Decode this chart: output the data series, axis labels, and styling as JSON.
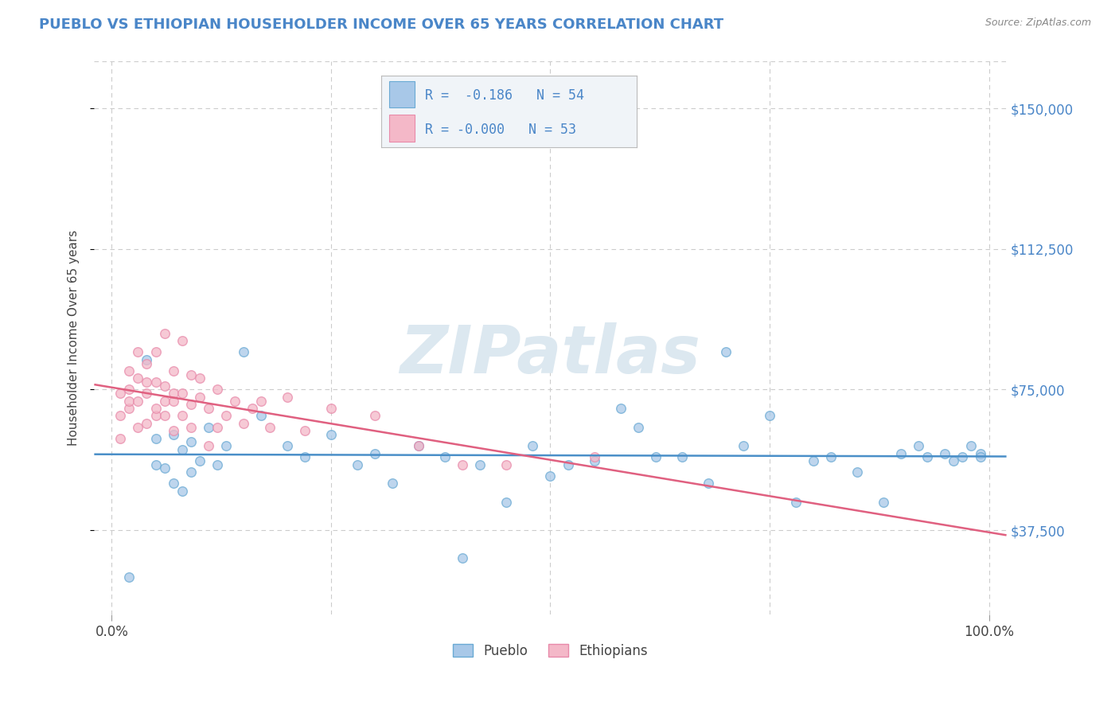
{
  "title": "PUEBLO VS ETHIOPIAN HOUSEHOLDER INCOME OVER 65 YEARS CORRELATION CHART",
  "source": "Source: ZipAtlas.com",
  "ylabel": "Householder Income Over 65 years",
  "ytick_labels": [
    "$37,500",
    "$75,000",
    "$112,500",
    "$150,000"
  ],
  "ytick_values": [
    37500,
    75000,
    112500,
    150000
  ],
  "ymin": 15000,
  "ymax": 162500,
  "xmin": -0.02,
  "xmax": 1.02,
  "legend_line1": "R =  -0.186   N = 54",
  "legend_line2": "R = -0.000   N = 53",
  "pueblo_scatter_color": "#a8c8e8",
  "pueblo_edge_color": "#6aaad4",
  "ethiopian_scatter_color": "#f4b8c8",
  "ethiopian_edge_color": "#e88aaa",
  "trend_pueblo_color": "#4a8fc8",
  "trend_ethiopian_color": "#e06080",
  "watermark_text": "ZIPatlas",
  "watermark_color": "#dce8f0",
  "bg_color": "#ffffff",
  "grid_color": "#cccccc",
  "title_color": "#4a86c8",
  "legend_text_color": "#4a86c8",
  "legend_box_color": "#f0f4f8",
  "pueblo_scatter_x": [
    0.02,
    0.04,
    0.05,
    0.05,
    0.06,
    0.07,
    0.07,
    0.08,
    0.08,
    0.09,
    0.09,
    0.1,
    0.11,
    0.12,
    0.13,
    0.15,
    0.17,
    0.2,
    0.22,
    0.25,
    0.28,
    0.3,
    0.32,
    0.35,
    0.38,
    0.4,
    0.42,
    0.45,
    0.48,
    0.5,
    0.52,
    0.55,
    0.58,
    0.6,
    0.62,
    0.65,
    0.68,
    0.7,
    0.72,
    0.75,
    0.78,
    0.8,
    0.82,
    0.85,
    0.88,
    0.9,
    0.92,
    0.93,
    0.95,
    0.96,
    0.97,
    0.98,
    0.99,
    0.99
  ],
  "pueblo_scatter_y": [
    25000,
    83000,
    62000,
    55000,
    54000,
    63000,
    50000,
    59000,
    48000,
    53000,
    61000,
    56000,
    65000,
    55000,
    60000,
    85000,
    68000,
    60000,
    57000,
    63000,
    55000,
    58000,
    50000,
    60000,
    57000,
    30000,
    55000,
    45000,
    60000,
    52000,
    55000,
    56000,
    70000,
    65000,
    57000,
    57000,
    50000,
    85000,
    60000,
    68000,
    45000,
    56000,
    57000,
    53000,
    45000,
    58000,
    60000,
    57000,
    58000,
    56000,
    57000,
    60000,
    58000,
    57000
  ],
  "ethiopian_scatter_x": [
    0.01,
    0.01,
    0.01,
    0.02,
    0.02,
    0.02,
    0.02,
    0.03,
    0.03,
    0.03,
    0.03,
    0.04,
    0.04,
    0.04,
    0.04,
    0.05,
    0.05,
    0.05,
    0.05,
    0.06,
    0.06,
    0.06,
    0.06,
    0.07,
    0.07,
    0.07,
    0.07,
    0.08,
    0.08,
    0.08,
    0.09,
    0.09,
    0.09,
    0.1,
    0.1,
    0.11,
    0.11,
    0.12,
    0.12,
    0.13,
    0.14,
    0.15,
    0.16,
    0.17,
    0.18,
    0.2,
    0.22,
    0.25,
    0.3,
    0.35,
    0.4,
    0.45,
    0.55
  ],
  "ethiopian_scatter_y": [
    68000,
    74000,
    62000,
    70000,
    75000,
    80000,
    72000,
    65000,
    72000,
    78000,
    85000,
    66000,
    74000,
    82000,
    77000,
    68000,
    77000,
    85000,
    70000,
    76000,
    90000,
    72000,
    68000,
    64000,
    72000,
    80000,
    74000,
    68000,
    74000,
    88000,
    71000,
    79000,
    65000,
    73000,
    78000,
    70000,
    60000,
    65000,
    75000,
    68000,
    72000,
    66000,
    70000,
    72000,
    65000,
    73000,
    64000,
    70000,
    68000,
    60000,
    55000,
    55000,
    57000
  ]
}
